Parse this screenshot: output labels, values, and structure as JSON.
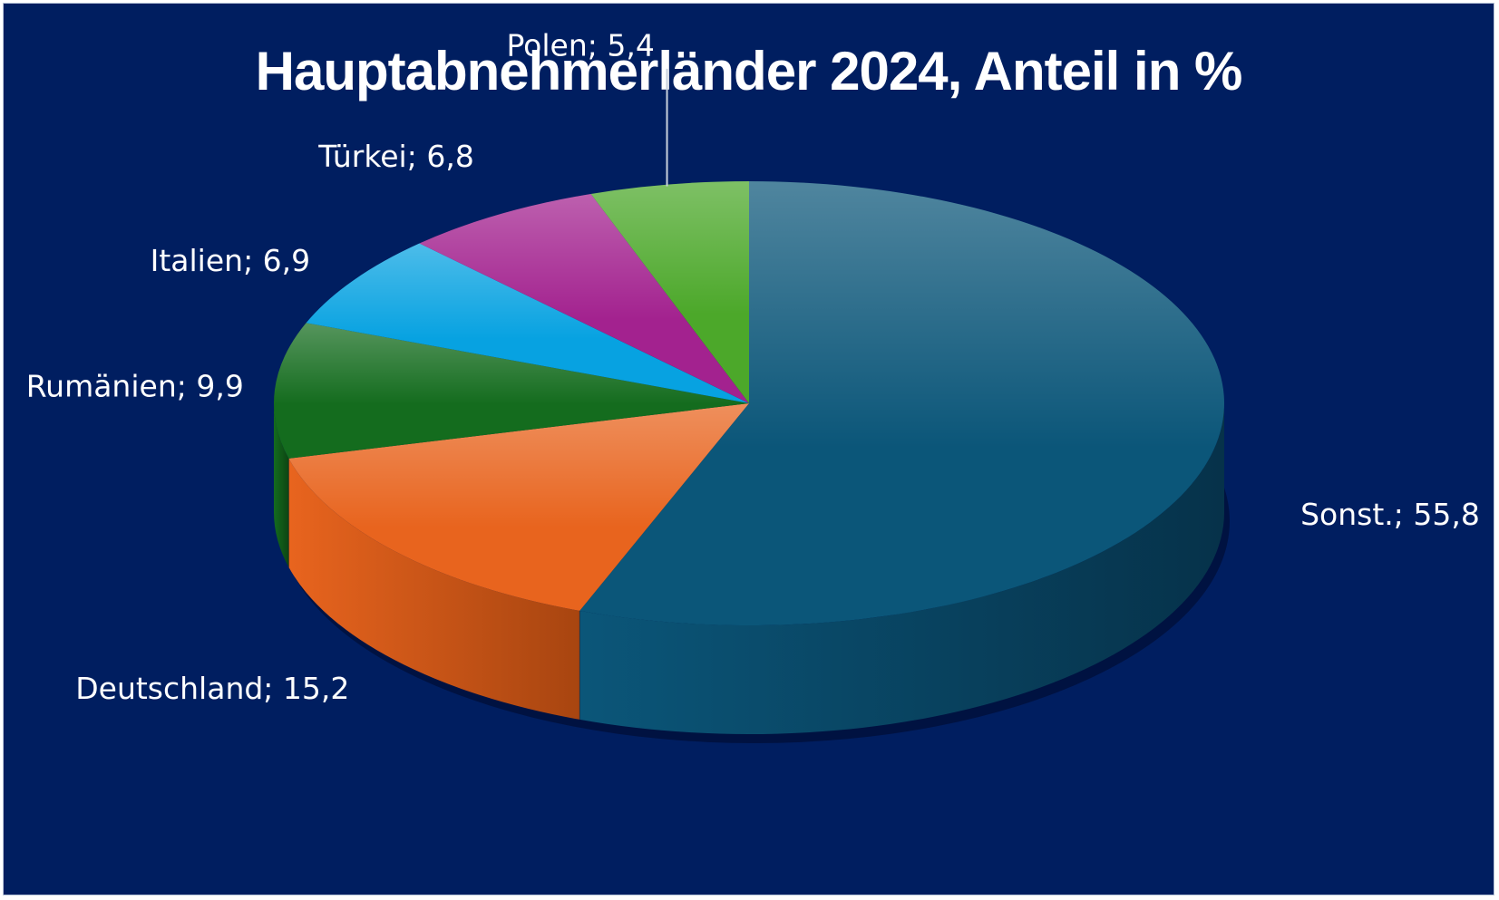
{
  "chart_data": {
    "type": "pie",
    "title": "Hauptabnehmerländer 2024, Anteil in %",
    "slices": [
      {
        "name": "Sonst.",
        "value": 55.8,
        "label": "Sonst.; 55,8",
        "color": "#0b5679",
        "side": "#06324a"
      },
      {
        "name": "Deutschland",
        "value": 15.2,
        "label": "Deutschland; 15,2",
        "color": "#e8641e",
        "side": "#a84510"
      },
      {
        "name": "Rumänien",
        "value": 9.9,
        "label": "Rumänien; 9,9",
        "color": "#146c1e",
        "side": "#0c4512"
      },
      {
        "name": "Italien",
        "value": 6.9,
        "label": "Italien; 6,9",
        "color": "#07a2e1",
        "side": "#05729f"
      },
      {
        "name": "Türkei",
        "value": 6.8,
        "label": "Türkei; 6,8",
        "color": "#a3228f",
        "side": "#6d1660"
      },
      {
        "name": "Polen",
        "value": 5.4,
        "label": "Polen; 5,4",
        "color": "#4ca82a",
        "side": "#326f1c"
      }
    ],
    "start_angle": "12 o'clock",
    "direction": "clockwise",
    "style": "3d-tilted",
    "background": "#001e60"
  }
}
